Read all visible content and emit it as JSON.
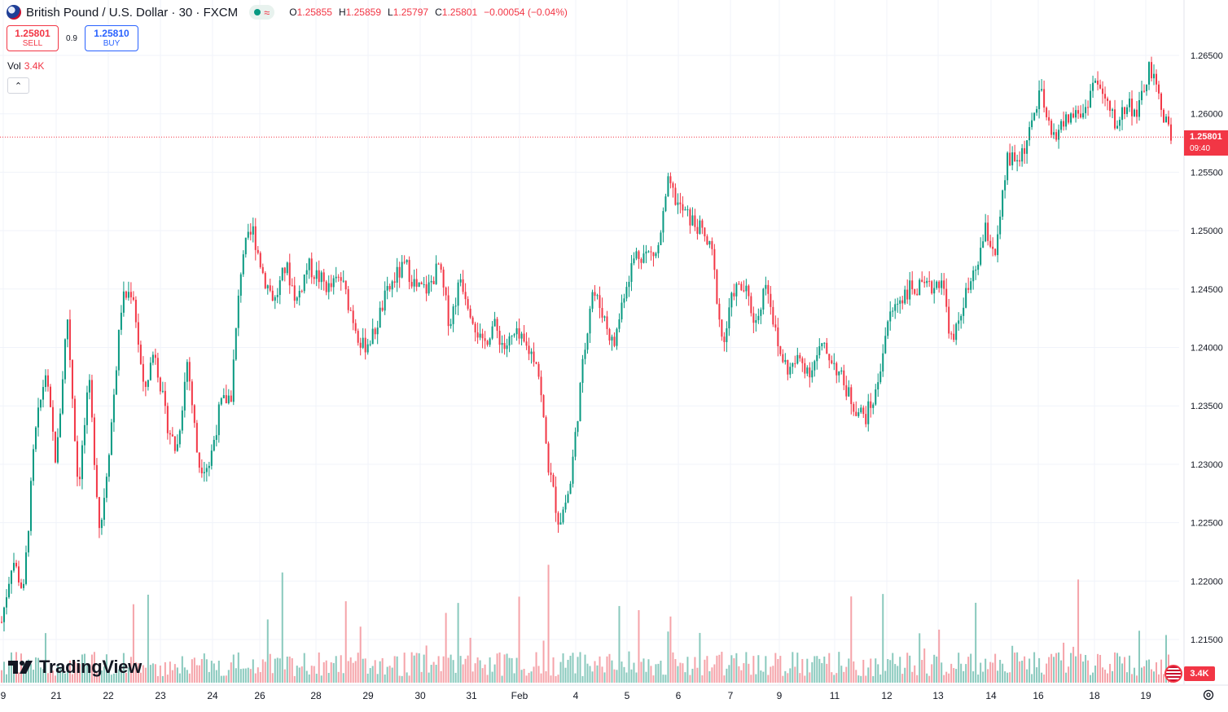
{
  "header": {
    "symbol_title": "British Pound / U.S. Dollar · 30 · FXCM",
    "ohlc": [
      {
        "key": "O",
        "value": "1.25855"
      },
      {
        "key": "H",
        "value": "1.25859"
      },
      {
        "key": "L",
        "value": "1.25797"
      },
      {
        "key": "C",
        "value": "1.25801"
      }
    ],
    "change": "−0.00054 (−0.04%)"
  },
  "trade": {
    "sell_price": "1.25801",
    "sell_label": "SELL",
    "spread": "0.9",
    "buy_price": "1.25810",
    "buy_label": "BUY"
  },
  "volume_label": {
    "label": "Vol",
    "value": "3.4K"
  },
  "price_tag": {
    "price": "1.25801",
    "countdown": "09:40"
  },
  "volume_tag": "3.4K",
  "logo_text": "TradingView",
  "colors": {
    "up": "#089981",
    "down": "#f23645",
    "up_volume": "#89c9bd",
    "down_volume": "#f5a3a9",
    "grid": "#f0f3fa",
    "text": "#131722",
    "accent_blue": "#2962ff"
  },
  "icons": [
    "flag-icon",
    "dot-icon",
    "wave-icon",
    "chevron-up-icon",
    "tradingview-logo-icon",
    "flag-mini-icon",
    "settings-icon"
  ],
  "chart_data": {
    "type": "line",
    "title": "British Pound / U.S. Dollar · 30 · FXCM",
    "xlabel": "",
    "ylabel": "",
    "ylim": [
      1.2105,
      1.269
    ],
    "x_ticks": [
      "9",
      "21",
      "22",
      "23",
      "24",
      "26",
      "28",
      "29",
      "30",
      "31",
      "Feb",
      "4",
      "5",
      "6",
      "7",
      "9",
      "11",
      "12",
      "13",
      "14",
      "16",
      "18",
      "19"
    ],
    "y_ticks": [
      "1.26500",
      "1.26000",
      "1.25500",
      "1.25000",
      "1.24500",
      "1.24000",
      "1.23500",
      "1.23000",
      "1.22500",
      "1.22000",
      "1.21500"
    ],
    "last_price": 1.25801,
    "series": [
      {
        "values": [
          1.2165,
          1.222,
          1.219,
          1.232,
          1.238,
          1.23,
          1.243,
          1.228,
          1.237,
          1.224,
          1.233,
          1.244,
          1.245,
          1.236,
          1.24,
          1.234,
          1.231,
          1.239,
          1.23,
          1.23,
          1.235,
          1.236,
          1.248,
          1.25,
          1.246,
          1.244,
          1.247,
          1.244,
          1.247,
          1.246,
          1.245,
          1.246,
          1.243,
          1.24,
          1.241,
          1.244,
          1.246,
          1.247,
          1.245,
          1.245,
          1.247,
          1.242,
          1.246,
          1.243,
          1.24,
          1.242,
          1.24,
          1.241,
          1.24,
          1.239,
          1.23,
          1.225,
          1.228,
          1.237,
          1.245,
          1.243,
          1.24,
          1.245,
          1.248,
          1.248,
          1.248,
          1.254,
          1.252,
          1.251,
          1.25,
          1.248,
          1.24,
          1.245,
          1.245,
          1.242,
          1.246,
          1.24,
          1.238,
          1.239,
          1.238,
          1.24,
          1.239,
          1.237,
          1.235,
          1.234,
          1.236,
          1.242,
          1.244,
          1.245,
          1.245,
          1.245,
          1.246,
          1.24,
          1.244,
          1.246,
          1.25,
          1.248,
          1.256,
          1.256,
          1.258,
          1.262,
          1.258,
          1.259,
          1.26,
          1.26,
          1.263,
          1.261,
          1.259,
          1.261,
          1.26,
          1.264,
          1.261,
          1.258
        ],
        "note_range": "30-minute OHLC candles, Jan 19 – Feb 19"
      }
    ],
    "volume_peak": "3.4K"
  }
}
